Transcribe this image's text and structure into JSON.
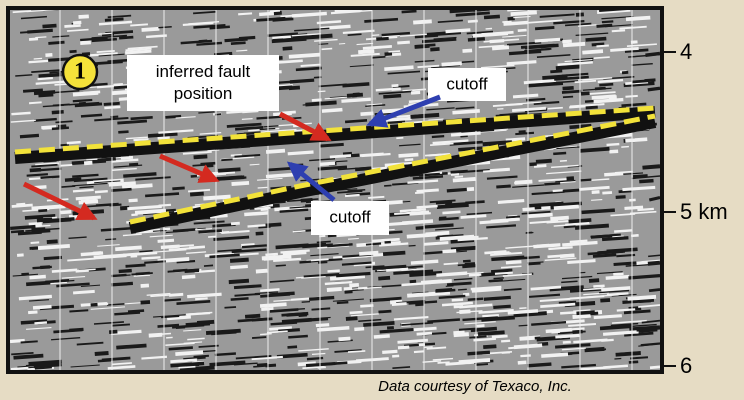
{
  "badge": "1",
  "annotations": {
    "fault": "inferred fault position",
    "cutoff_upper": "cutoff",
    "cutoff_lower": "cutoff"
  },
  "depth_labels": [
    "4",
    "5 km",
    "6"
  ],
  "caption": "Data courtesy of Texaco, Inc."
}
